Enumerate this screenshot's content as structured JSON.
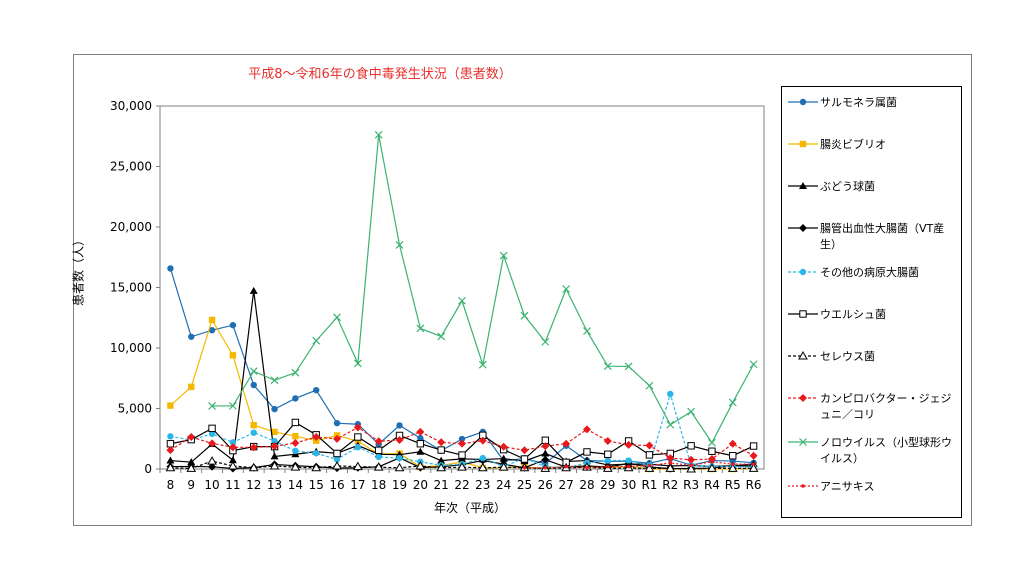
{
  "chart_data": {
    "type": "line",
    "title": "平成8～令和6年の食中毒発生状況（患者数）",
    "xlabel": "年次（平成）",
    "ylabel": "患者数（人）",
    "ylim": [
      0,
      30000
    ],
    "yticks": [
      "0",
      "5,000",
      "10,000",
      "15,000",
      "20,000",
      "25,000",
      "30,000"
    ],
    "grid": false,
    "legend": "right",
    "categories": [
      "8",
      "9",
      "10",
      "11",
      "12",
      "13",
      "14",
      "15",
      "16",
      "17",
      "18",
      "19",
      "20",
      "21",
      "22",
      "23",
      "24",
      "25",
      "26",
      "27",
      "28",
      "29",
      "30",
      "R1",
      "R2",
      "R3",
      "R4",
      "R5",
      "R6"
    ],
    "series": [
      {
        "name": "サルモネラ属菌",
        "color": "#1f6fb4",
        "dash": "",
        "marker": "circle",
        "values": [
          16576,
          10926,
          11471,
          11888,
          6940,
          4949,
          5833,
          6517,
          3788,
          3700,
          2053,
          3603,
          2551,
          1518,
          2476,
          3068,
          670,
          861,
          440,
          1918,
          704,
          640,
          640,
          476,
          861,
          318,
          698,
          655,
          512
        ]
      },
      {
        "name": "腸炎ビブリオ",
        "color": "#f5b800",
        "dash": "",
        "marker": "square",
        "values": [
          5241,
          6786,
          12318,
          9396,
          3620,
          3065,
          2714,
          2342,
          2773,
          2301,
          1236,
          1278,
          168,
          280,
          579,
          87,
          124,
          164,
          47,
          224,
          240,
          97,
          222,
          0,
          3,
          0,
          0,
          0,
          50
        ]
      },
      {
        "name": "ぶどう球菌",
        "color": "#000000",
        "dash": "",
        "marker": "triangle",
        "values": [
          698,
          564,
          2061,
          736,
          14722,
          1039,
          1221,
          1438,
          1300,
          1948,
          1220,
          1181,
          1424,
          690,
          836,
          792,
          854,
          654,
          1277,
          619,
          698,
          336,
          405,
          393,
          260,
          285,
          219,
          258,
          400
        ]
      },
      {
        "name": "腸管出血性大腸菌（VT産生）",
        "color": "#000000",
        "dash": "",
        "marker": "diamond",
        "values": [
          200,
          211,
          182,
          46,
          113,
          378,
          273,
          184,
          70,
          105,
          179,
          928,
          115,
          181,
          358,
          714,
          392,
          105,
          766,
          156,
          252,
          168,
          456,
          165,
          30,
          42,
          78,
          265,
          250
        ]
      },
      {
        "name": "その他の病原大腸菌",
        "color": "#2ab7e8",
        "dash": "3,2",
        "marker": "circle",
        "values": [
          2700,
          2400,
          2900,
          2200,
          3000,
          2300,
          1500,
          1300,
          800,
          1800,
          1000,
          900,
          600,
          300,
          400,
          900,
          200,
          900,
          200,
          100,
          500,
          700,
          700,
          300,
          6200,
          300,
          200,
          200,
          150
        ]
      },
      {
        "name": "ウエルシュ菌",
        "color": "#000000",
        "dash": "",
        "marker": "opensquare",
        "values": [
          2085,
          2428,
          3360,
          1517,
          1851,
          1852,
          3847,
          2824,
          1283,
          2643,
          1545,
          2772,
          2088,
          1566,
          1151,
          2784,
          1597,
          824,
          2373,
          551,
          1411,
          1220,
          2319,
          1166,
          1288,
          1916,
          1467,
          1097,
          1896
        ]
      },
      {
        "name": "セレウス菌",
        "color": "#000000",
        "dash": "3,2",
        "marker": "opentriangle",
        "values": [
          100,
          50,
          650,
          250,
          100,
          250,
          150,
          100,
          250,
          200,
          150,
          100,
          250,
          100,
          150,
          100,
          150,
          100,
          50,
          100,
          150,
          50,
          100,
          50,
          50,
          0,
          50,
          50,
          50
        ]
      },
      {
        "name": "カンピロバクター・ジェジュニ／コリ",
        "color": "#e8191c",
        "dash": "3,2",
        "marker": "diamond",
        "values": [
          1557,
          2648,
          2114,
          1802,
          1784,
          1880,
          2152,
          2642,
          2485,
          3439,
          2297,
          2396,
          3071,
          2206,
          2092,
          2341,
          1834,
          1551,
          1893,
          2089,
          3272,
          2315,
          1995,
          1937,
          901,
          764,
          822,
          2089,
          1100
        ]
      },
      {
        "name": "ノロウイルス（小型球形ウイルス）",
        "color": "#3cb371",
        "dash": "",
        "marker": "x",
        "values": [
          null,
          null,
          5213,
          5217,
          8080,
          7335,
          7961,
          10603,
          12537,
          8727,
          27616,
          18520,
          11618,
          10953,
          13904,
          8619,
          17632,
          12672,
          10506,
          14876,
          11397,
          8496,
          8475,
          6889,
          3660,
          4733,
          2175,
          5502,
          8656
        ]
      },
      {
        "name": "アニサキス",
        "color": "#e8191c",
        "dash": "2,2",
        "marker": "smalldot",
        "values": [
          null,
          null,
          null,
          null,
          null,
          null,
          null,
          null,
          null,
          null,
          null,
          null,
          null,
          null,
          null,
          null,
          null,
          100,
          100,
          200,
          100,
          200,
          200,
          300,
          500,
          300,
          600,
          400,
          400
        ]
      }
    ]
  }
}
